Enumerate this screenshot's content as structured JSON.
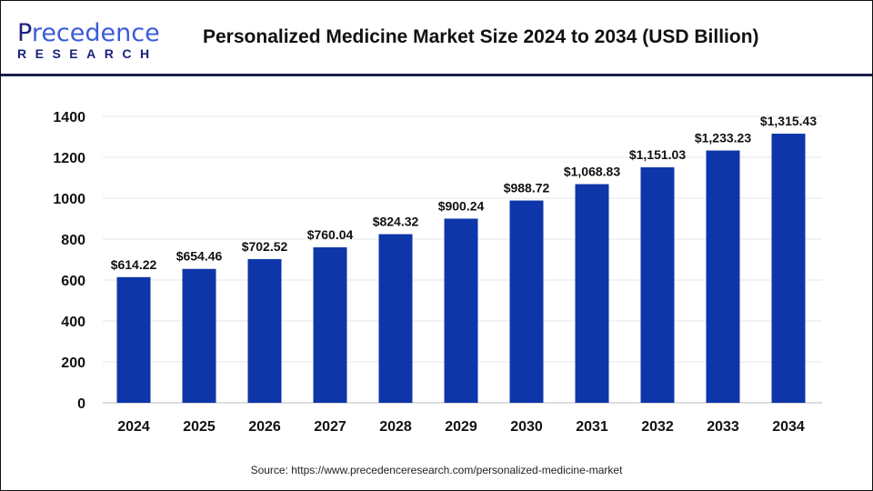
{
  "header": {
    "logo_text": "Precedence",
    "logo_sub": "RESEARCH",
    "title": "Personalized Medicine Market Size 2024 to 2034 (USD Billion)"
  },
  "chart_data": {
    "type": "bar",
    "title": "Personalized Medicine Market Size 2024 to 2034 (USD Billion)",
    "categories": [
      "2024",
      "2025",
      "2026",
      "2027",
      "2028",
      "2029",
      "2030",
      "2031",
      "2032",
      "2033",
      "2034"
    ],
    "values": [
      614.22,
      654.46,
      702.52,
      760.04,
      824.32,
      900.24,
      988.72,
      1068.83,
      1151.03,
      1233.23,
      1315.43
    ],
    "data_labels": [
      "$614.22",
      "$654.46",
      "$702.52",
      "$760.04",
      "$824.32",
      "$900.24",
      "$988.72",
      "$1,068.83",
      "$1,151.03",
      "$1,233.23",
      "$1,315.43"
    ],
    "yticks": [
      "0",
      "200",
      "400",
      "600",
      "800",
      "1000",
      "1200",
      "1400"
    ],
    "ylim": [
      0,
      1400
    ],
    "grid": true,
    "bar_color": "#0e36a8"
  },
  "source": "Source: https://www.precedenceresearch.com/personalized-medicine-market"
}
